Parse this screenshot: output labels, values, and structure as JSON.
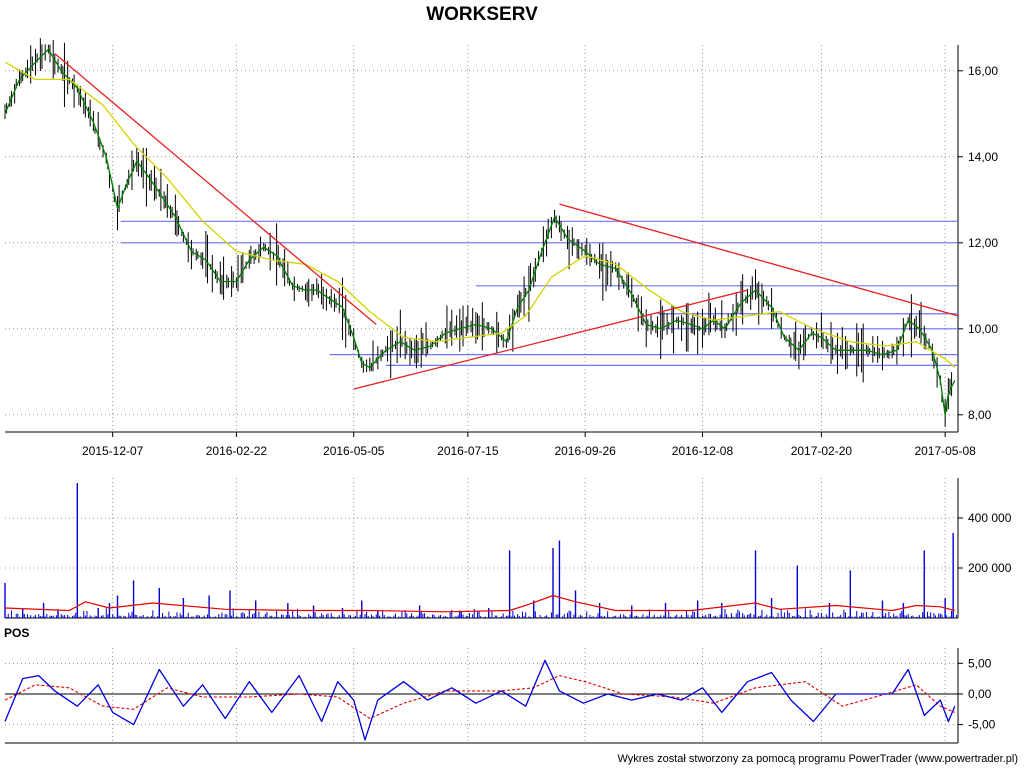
{
  "title": "WORKSERV",
  "footer": "Wykres został stworzony za pomocą programu PowerTrader (www.powertrader.pl)",
  "colors": {
    "price": "#000000",
    "moving_average": "#d4d400",
    "short_ma": "#008000",
    "trendline": "#e82020",
    "level": "#6f74f0",
    "volume": "#0000d0",
    "volume_ma": "#e80000",
    "pos": "#0000e0",
    "pos_signal": "#e00000",
    "grid": "#909090"
  },
  "chart_data": [
    {
      "type": "line",
      "pane": "price",
      "title": "WORKSERV",
      "x_tick_labels": [
        "2015-12-07",
        "2016-02-22",
        "2016-05-05",
        "2016-07-15",
        "2016-09-26",
        "2016-12-08",
        "2017-02-20",
        "2017-05-08"
      ],
      "y_tick_labels": [
        "16,00",
        "14,00",
        "12,00",
        "10,00",
        "8,00"
      ],
      "y_ticks": [
        16,
        14,
        12,
        10,
        8
      ],
      "ylim": [
        7.6,
        16.6
      ],
      "xlim": [
        "2015-10-01",
        "2017-05-16"
      ],
      "grid": true,
      "series": [
        {
          "kind": "price",
          "x": [
            "2015-10-01",
            "2015-10-10",
            "2015-10-20",
            "2015-10-28",
            "2015-11-05",
            "2015-11-15",
            "2015-11-25",
            "2015-12-03",
            "2015-12-10",
            "2015-12-15",
            "2015-12-22",
            "2015-12-30",
            "2016-01-08",
            "2016-01-15",
            "2016-01-25",
            "2016-02-03",
            "2016-02-12",
            "2016-02-22",
            "2016-03-01",
            "2016-03-10",
            "2016-03-18",
            "2016-03-28",
            "2016-04-05",
            "2016-04-12",
            "2016-04-20",
            "2016-04-28",
            "2016-05-05",
            "2016-05-10",
            "2016-05-15",
            "2016-05-25",
            "2016-06-03",
            "2016-06-12",
            "2016-06-22",
            "2016-07-01",
            "2016-07-10",
            "2016-07-20",
            "2016-07-30",
            "2016-08-08",
            "2016-08-15",
            "2016-08-22",
            "2016-08-30",
            "2016-09-07",
            "2016-09-15",
            "2016-09-26",
            "2016-10-05",
            "2016-10-15",
            "2016-10-25",
            "2016-11-03",
            "2016-11-12",
            "2016-11-22",
            "2016-12-01",
            "2016-12-08",
            "2016-12-15",
            "2016-12-22",
            "2017-01-01",
            "2017-01-10",
            "2017-01-20",
            "2017-01-28",
            "2017-02-06",
            "2017-02-14",
            "2017-02-20",
            "2017-03-01",
            "2017-03-10",
            "2017-03-20",
            "2017-03-30",
            "2017-04-08",
            "2017-04-15",
            "2017-04-22",
            "2017-04-30",
            "2017-05-05",
            "2017-05-08",
            "2017-05-10",
            "2017-05-14"
          ],
          "y": [
            15.0,
            15.8,
            16.2,
            16.5,
            16.0,
            15.6,
            14.8,
            14.0,
            12.8,
            13.3,
            13.9,
            13.5,
            13.0,
            12.6,
            11.8,
            11.6,
            11.1,
            11.1,
            11.6,
            11.9,
            11.7,
            11.0,
            10.9,
            10.9,
            10.7,
            10.5,
            9.8,
            9.2,
            9.1,
            9.5,
            9.7,
            9.5,
            9.6,
            9.9,
            10.0,
            10.1,
            10.0,
            9.7,
            10.5,
            10.9,
            11.8,
            12.6,
            12.1,
            11.8,
            11.5,
            11.4,
            10.8,
            10.1,
            10.0,
            10.2,
            10.1,
            10.0,
            10.2,
            10.0,
            10.6,
            10.9,
            10.5,
            9.8,
            9.5,
            9.9,
            9.8,
            9.5,
            9.5,
            9.5,
            9.4,
            9.5,
            10.2,
            10.0,
            9.5,
            8.8,
            8.0,
            8.5,
            8.8
          ]
        },
        {
          "kind": "moving_average",
          "x": [
            "2015-10-01",
            "2015-10-20",
            "2015-11-10",
            "2015-12-01",
            "2015-12-20",
            "2016-01-10",
            "2016-02-01",
            "2016-02-22",
            "2016-03-15",
            "2016-04-05",
            "2016-04-25",
            "2016-05-15",
            "2016-06-05",
            "2016-06-25",
            "2016-07-15",
            "2016-08-05",
            "2016-08-20",
            "2016-09-05",
            "2016-09-26",
            "2016-10-15",
            "2016-11-05",
            "2016-11-25",
            "2016-12-15",
            "2017-01-05",
            "2017-01-25",
            "2017-02-15",
            "2017-03-10",
            "2017-04-01",
            "2017-04-20",
            "2017-05-08",
            "2017-05-14"
          ],
          "y": [
            16.2,
            15.8,
            15.8,
            15.2,
            14.3,
            13.5,
            12.5,
            11.8,
            11.6,
            11.5,
            11.1,
            10.4,
            9.8,
            9.7,
            9.8,
            9.9,
            10.3,
            11.2,
            11.7,
            11.5,
            10.9,
            10.4,
            10.2,
            10.3,
            10.4,
            10.0,
            9.7,
            9.6,
            9.7,
            9.3,
            9.1
          ]
        }
      ],
      "trendlines": [
        {
          "x": [
            "2015-11-01",
            "2016-05-19"
          ],
          "y": [
            16.4,
            10.1
          ]
        },
        {
          "x": [
            "2016-05-05",
            "2017-01-05"
          ],
          "y": [
            8.6,
            10.9
          ]
        },
        {
          "x": [
            "2016-09-10",
            "2017-05-16"
          ],
          "y": [
            12.9,
            10.3
          ]
        }
      ],
      "levels": [
        {
          "y": 12.5,
          "x": [
            "2015-12-12",
            "2017-05-16"
          ]
        },
        {
          "y": 12.0,
          "x": [
            "2015-12-12",
            "2017-05-16"
          ]
        },
        {
          "y": 11.0,
          "x": [
            "2016-07-20",
            "2017-05-16"
          ]
        },
        {
          "y": 10.35,
          "x": [
            "2016-11-10",
            "2017-05-16"
          ]
        },
        {
          "y": 10.0,
          "x": [
            "2016-11-15",
            "2017-05-16"
          ]
        },
        {
          "y": 9.4,
          "x": [
            "2016-04-20",
            "2017-05-16"
          ]
        },
        {
          "y": 9.15,
          "x": [
            "2016-05-25",
            "2017-05-16"
          ]
        }
      ]
    },
    {
      "type": "bar",
      "pane": "volume",
      "y_tick_labels": [
        "400 000",
        "200 000"
      ],
      "y_ticks": [
        400000,
        200000
      ],
      "ylim": [
        0,
        560000
      ],
      "series": [
        {
          "kind": "volume",
          "x": [
            "2015-10-01",
            "2015-10-12",
            "2015-10-25",
            "2015-11-03",
            "2015-11-15",
            "2015-11-28",
            "2015-12-05",
            "2015-12-10",
            "2015-12-20",
            "2016-01-05",
            "2016-01-20",
            "2016-02-05",
            "2016-02-18",
            "2016-03-05",
            "2016-03-25",
            "2016-04-10",
            "2016-04-28",
            "2016-05-10",
            "2016-05-20",
            "2016-06-15",
            "2016-07-10",
            "2016-07-28",
            "2016-08-10",
            "2016-08-25",
            "2016-09-06",
            "2016-09-10",
            "2016-09-20",
            "2016-10-05",
            "2016-10-25",
            "2016-11-15",
            "2016-12-05",
            "2016-12-20",
            "2017-01-10",
            "2017-01-20",
            "2017-02-05",
            "2017-02-25",
            "2017-03-10",
            "2017-03-30",
            "2017-04-12",
            "2017-04-25",
            "2017-05-08",
            "2017-05-13"
          ],
          "y": [
            140000,
            40000,
            60000,
            30000,
            540000,
            40000,
            60000,
            90000,
            150000,
            120000,
            80000,
            90000,
            110000,
            70000,
            60000,
            50000,
            40000,
            70000,
            30000,
            50000,
            30000,
            40000,
            270000,
            70000,
            280000,
            310000,
            110000,
            60000,
            50000,
            60000,
            70000,
            60000,
            270000,
            80000,
            210000,
            60000,
            190000,
            70000,
            60000,
            270000,
            80000,
            340000
          ]
        },
        {
          "kind": "volume_ma",
          "x": [
            "2015-10-01",
            "2015-11-10",
            "2015-11-20",
            "2015-12-05",
            "2016-01-01",
            "2016-02-15",
            "2016-04-01",
            "2016-05-15",
            "2016-07-01",
            "2016-08-10",
            "2016-08-22",
            "2016-09-06",
            "2016-09-20",
            "2016-10-15",
            "2016-12-01",
            "2017-01-10",
            "2017-01-25",
            "2017-03-01",
            "2017-04-05",
            "2017-04-20",
            "2017-05-05",
            "2017-05-14"
          ],
          "y": [
            40000,
            30000,
            65000,
            40000,
            60000,
            35000,
            30000,
            30000,
            25000,
            30000,
            55000,
            90000,
            65000,
            30000,
            30000,
            60000,
            35000,
            50000,
            30000,
            50000,
            45000,
            30000
          ]
        }
      ]
    },
    {
      "type": "line",
      "pane": "oscillator",
      "name": "POS",
      "y_tick_labels": [
        "5,00",
        "0,00",
        "-5,00"
      ],
      "y_ticks": [
        5,
        0,
        -5
      ],
      "ylim": [
        -8,
        7.5
      ],
      "series": [
        {
          "kind": "pos",
          "x": [
            "2015-10-01",
            "2015-10-12",
            "2015-10-22",
            "2015-11-01",
            "2015-11-15",
            "2015-11-28",
            "2015-12-07",
            "2015-12-20",
            "2016-01-05",
            "2016-01-20",
            "2016-02-01",
            "2016-02-15",
            "2016-03-01",
            "2016-03-15",
            "2016-04-01",
            "2016-04-15",
            "2016-04-25",
            "2016-05-05",
            "2016-05-12",
            "2016-05-20",
            "2016-06-05",
            "2016-06-20",
            "2016-07-05",
            "2016-07-20",
            "2016-08-05",
            "2016-08-20",
            "2016-09-01",
            "2016-09-10",
            "2016-09-25",
            "2016-10-10",
            "2016-10-25",
            "2016-11-10",
            "2016-11-25",
            "2016-12-08",
            "2016-12-20",
            "2017-01-05",
            "2017-01-20",
            "2017-02-01",
            "2017-02-15",
            "2017-03-01",
            "2017-03-20",
            "2017-04-05",
            "2017-04-15",
            "2017-04-25",
            "2017-05-05",
            "2017-05-10",
            "2017-05-14"
          ],
          "y": [
            -4.5,
            2.5,
            3.0,
            0.5,
            -2.0,
            1.5,
            -3.0,
            -5.0,
            4.0,
            -2.0,
            1.5,
            -4.0,
            2.0,
            -3.0,
            3.0,
            -4.5,
            2.0,
            -1.0,
            -7.5,
            -1.0,
            2.0,
            -1.0,
            1.0,
            -1.5,
            0.5,
            -2.0,
            5.5,
            0.5,
            -1.5,
            0.0,
            -1.0,
            0.0,
            -1.0,
            1.0,
            -3.0,
            2.0,
            3.5,
            -1.0,
            -4.5,
            0.0,
            0.0,
            0.0,
            4.0,
            -3.5,
            -1.0,
            -4.5,
            -2.0
          ]
        },
        {
          "kind": "pos_signal",
          "x": [
            "2015-10-01",
            "2015-10-20",
            "2015-11-10",
            "2015-12-01",
            "2015-12-20",
            "2016-01-10",
            "2016-02-01",
            "2016-03-01",
            "2016-04-01",
            "2016-04-25",
            "2016-05-15",
            "2016-06-05",
            "2016-07-01",
            "2016-08-05",
            "2016-08-25",
            "2016-09-10",
            "2016-09-26",
            "2016-10-20",
            "2016-11-20",
            "2016-12-15",
            "2017-01-10",
            "2017-02-10",
            "2017-03-05",
            "2017-04-01",
            "2017-04-20",
            "2017-05-05",
            "2017-05-14"
          ],
          "y": [
            -1.0,
            1.5,
            1.0,
            -2.0,
            -2.5,
            1.0,
            -0.5,
            -0.5,
            0.0,
            -0.5,
            -4.0,
            -1.5,
            0.5,
            0.5,
            1.0,
            3.0,
            2.0,
            0.0,
            -0.5,
            -1.5,
            1.0,
            2.0,
            -2.0,
            0.0,
            1.5,
            -2.0,
            -3.0
          ]
        }
      ]
    }
  ]
}
